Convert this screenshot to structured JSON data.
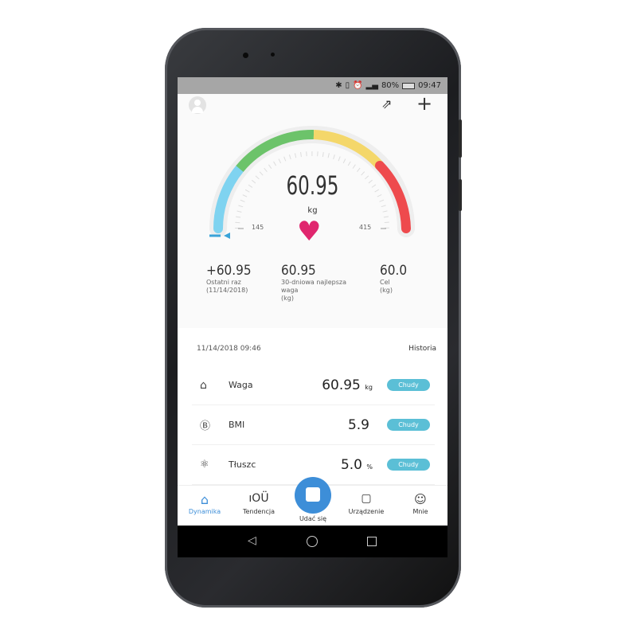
{
  "status_bar": {
    "battery": "80%",
    "time": "09:47"
  },
  "header": {
    "avatar_icon": "user-avatar-icon",
    "share_icon": "share-icon",
    "add_icon": "plus-icon"
  },
  "gauge": {
    "value": "60.95",
    "unit": "kg",
    "left_label": "145",
    "right_label": "415",
    "colors": [
      "#7fd3f0",
      "#6cc36a",
      "#f4d76a",
      "#ee4a4d"
    ]
  },
  "stats": [
    {
      "value": "+60.95",
      "label": "Ostatni raz",
      "sub": "(11/14/2018)"
    },
    {
      "value": "60.95",
      "label": "30-dniowa najlepsza",
      "sub": "waga",
      "sub2": "(kg)"
    },
    {
      "value": "60.0",
      "label": "Cel",
      "sub": "(kg)"
    }
  ],
  "measurement": {
    "datetime": "11/14/2018 09:46",
    "history_link": "Historia"
  },
  "metrics": [
    {
      "name": "Waga",
      "value": "60.95",
      "unit": "kg",
      "badge": "Chudy"
    },
    {
      "name": "BMI",
      "value": "5.9",
      "unit": "",
      "badge": "Chudy"
    },
    {
      "name": "Tłuszc",
      "value": "5.0",
      "unit": "%",
      "badge": "Chudy"
    }
  ],
  "nav": [
    {
      "label": "Dynamika",
      "active": true
    },
    {
      "label": "Tendencja"
    },
    {
      "label": "Udać się"
    },
    {
      "label": "Urządzenie"
    },
    {
      "label": "Mnie"
    }
  ],
  "accent": "#3d8ed8"
}
